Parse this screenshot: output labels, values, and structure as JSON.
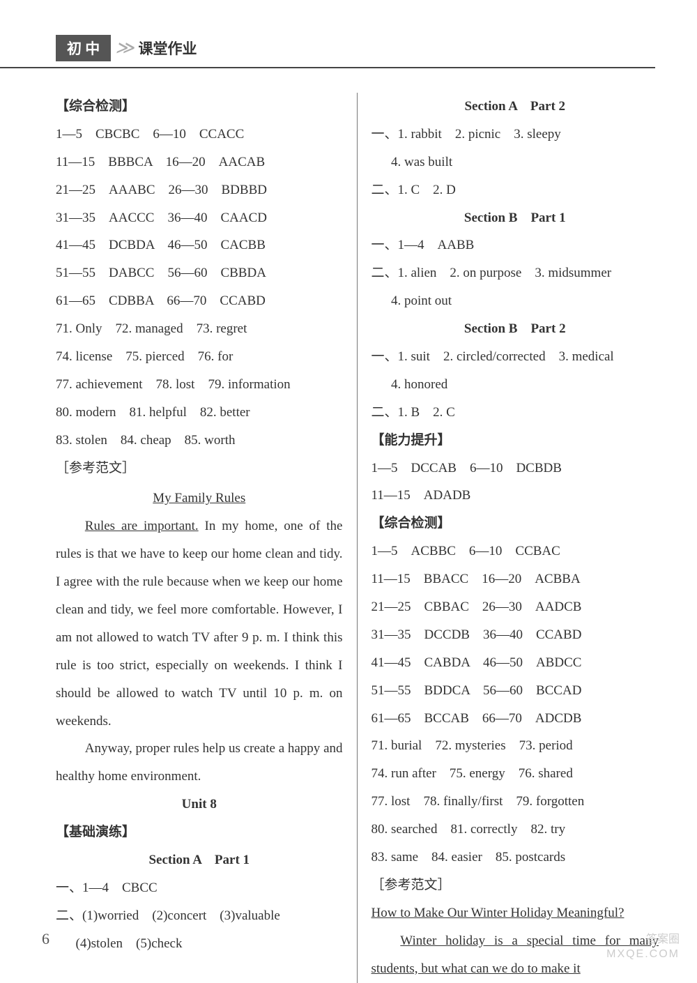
{
  "header": {
    "badge": "初 中",
    "arrows": "≫",
    "text": "课堂作业"
  },
  "left": {
    "s1_title": "【综合检测】",
    "lines": [
      "1—5　CBCBC　6—10　CCACC",
      "11—15　BBBCA　16—20　AACAB",
      "21—25　AAABC　26—30　BDBBD",
      "31—35　AACCC　36—40　CAACD",
      "41—45　DCBDA　46—50　CACBB",
      "51—55　DABCC　56—60　CBBDA",
      "61—65　CDBBA　66—70　CCABD",
      "71. Only　72. managed　73. regret",
      "74. license　75. pierced　76. for",
      "77. achievement　78. lost　79. information",
      "80. modern　81. helpful　82. better",
      "83. stolen　84. cheap　85. worth"
    ],
    "ref_label": "［参考范文］",
    "essay_title": "My Family Rules",
    "essay_p1_u": "Rules are important.",
    "essay_p1_rest": " In my home, one of the rules is that we have to keep our home clean and tidy. I agree with the rule because when we keep our home clean and tidy, we feel more comfortable. However, I am not allowed to watch TV after 9 p. m. I think this rule is too strict, especially on weekends. I think I should be allowed to watch TV until 10 p. m. on weekends.",
    "essay_p2": "Anyway, proper rules help us create a happy and healthy home environment.",
    "unit8": "Unit 8",
    "s2_title": "【基础演练】",
    "secA1": "Section A　Part 1",
    "a1_l1": "一、1—4　CBCC",
    "a1_l2": "二、(1)worried　(2)concert　(3)valuable",
    "a1_l3": "(4)stolen　(5)check"
  },
  "right": {
    "secA2": "Section A　Part 2",
    "a2_l1": "一、1. rabbit　2. picnic　3. sleepy",
    "a2_l2": "4. was built",
    "a2_l3": "二、1. C　2. D",
    "secB1": "Section B　Part 1",
    "b1_l1": "一、1—4　AABB",
    "b1_l2": "二、1. alien　2. on purpose　3. midsummer",
    "b1_l3": "4. point out",
    "secB2": "Section B　Part 2",
    "b2_l1": "一、1. suit　2. circled/corrected　3. medical",
    "b2_l2": "4. honored",
    "b2_l3": "二、1. B　2. C",
    "s3_title": "【能力提升】",
    "s3_l1": "1—5　DCCAB　6—10　DCBDB",
    "s3_l2": "11—15　ADADB",
    "s4_title": "【综合检测】",
    "s4_lines": [
      "1—5　ACBBC　6—10　CCBAC",
      "11—15　BBACC　16—20　ACBBA",
      "21—25　CBBAC　26—30　AADCB",
      "31—35　DCCDB　36—40　CCABD",
      "41—45　CABDA　46—50　ABDCC",
      "51—55　BDDCA　56—60　BCCAD",
      "61—65　BCCAB　66—70　ADCDB",
      "71. burial　72. mysteries　73. period",
      "74. run after　75. energy　76. shared",
      "77. lost　78. finally/first　79. forgotten",
      "80. searched　81. correctly　82. try",
      "83. same　84. easier　85. postcards"
    ],
    "ref_label": "［参考范文］",
    "essay2_title": "How to Make Our Winter Holiday Meaningful?",
    "essay2_p1": "Winter holiday is a special time for many students, but what can we do to make it"
  },
  "page_num": "6",
  "watermark": {
    "line1": "答案圈",
    "line2": "MXQE.COM"
  }
}
